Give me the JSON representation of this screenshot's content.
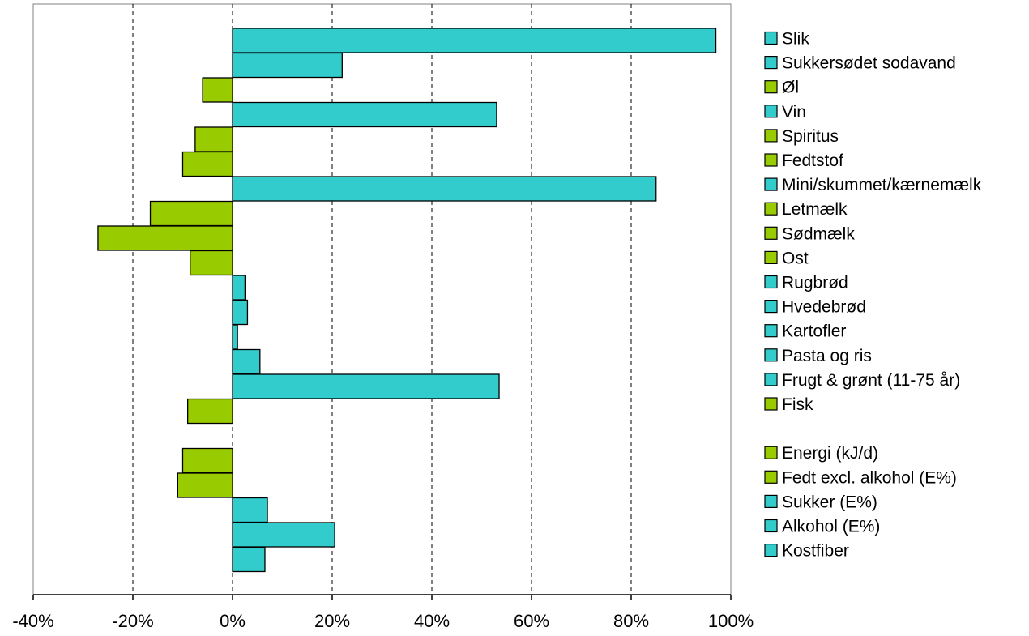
{
  "chart_data": {
    "type": "bar",
    "orientation": "horizontal",
    "categories": [
      "Slik",
      "Sukkersødet sodavand",
      "Øl",
      "Vin",
      "Spiritus",
      "Fedtstof",
      "Mini/skummet/kærnemælk",
      "Letmælk",
      "Sødmælk",
      "Ost",
      "Rugbrød",
      "Hvedebrød",
      "Kartofler",
      "Pasta og ris",
      "Frugt & grønt  (11-75 år)",
      "Fisk",
      "",
      "Energi (kJ/d)",
      "Fedt excl. alkohol (E%)",
      "Sukker (E%)",
      "Alkohol (E%)",
      "Kostfiber"
    ],
    "values": [
      97,
      22,
      -6,
      53,
      -7.5,
      -10,
      85,
      -16.5,
      -27,
      -8.5,
      2.5,
      3,
      1,
      5.5,
      53.5,
      -9,
      null,
      -10,
      -11,
      7,
      20.5,
      6.5
    ],
    "xlim": [
      -40,
      100
    ],
    "xticks": [
      -40,
      -20,
      0,
      20,
      40,
      60,
      80,
      100
    ],
    "xtick_labels": [
      "-40%",
      "-20%",
      "0%",
      "20%",
      "40%",
      "60%",
      "80%",
      "100%"
    ],
    "grid": "vertical dashed",
    "legend_position": "right",
    "colors": {
      "positive": "#33CCCC",
      "negative": "#99CC00",
      "border": "#000000"
    },
    "title": "",
    "xlabel": "",
    "ylabel": ""
  }
}
